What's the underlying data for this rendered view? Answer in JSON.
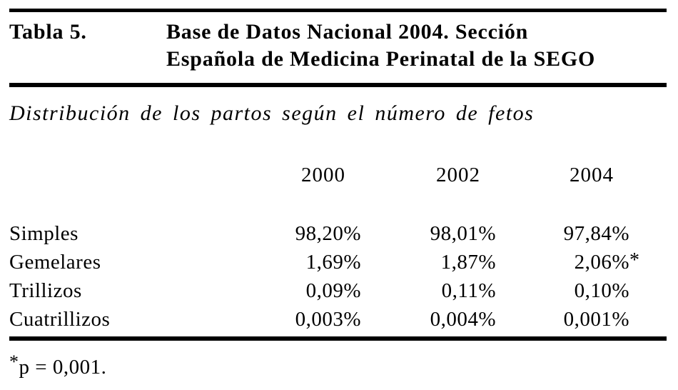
{
  "page": {
    "background_color": "#ffffff",
    "text_color": "#000000",
    "rule_color": "#000000"
  },
  "caption": {
    "label": "Tabla 5.",
    "title_lines": [
      "Base de Datos Nacional 2004. Sección",
      "Española de Medicina Perinatal de la SEGO"
    ]
  },
  "subtitle": "Distribución de los partos según el número de fetos",
  "table": {
    "column_headers": [
      "2000",
      "2002",
      "2004"
    ],
    "rows": [
      {
        "label": "Simples",
        "values": [
          "98,20%",
          "98,01%",
          "97,84%"
        ]
      },
      {
        "label": "Gemelares",
        "values": [
          "1,69%",
          "1,87%",
          "2,06%"
        ],
        "note_marker": "*"
      },
      {
        "label": "Trillizos",
        "values": [
          "0,09%",
          "0,11%",
          "0,10%"
        ]
      },
      {
        "label": "Cuatrillizos",
        "values": [
          "0,003%",
          "0,004%",
          "0,001%"
        ]
      }
    ]
  },
  "footnote": {
    "marker": "*",
    "text": "p = 0,001."
  }
}
